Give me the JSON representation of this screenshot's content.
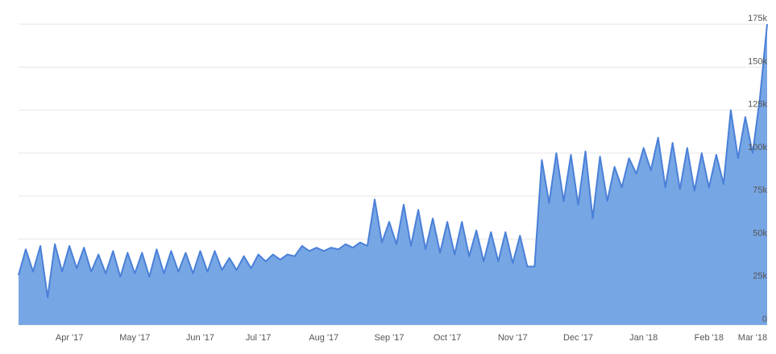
{
  "chart_data": {
    "type": "area",
    "categories": [
      null,
      null,
      null,
      null,
      null,
      null,
      null,
      "Apr '17",
      null,
      null,
      null,
      null,
      null,
      null,
      null,
      null,
      "May '17",
      null,
      null,
      null,
      null,
      null,
      null,
      null,
      null,
      "Jun '17",
      null,
      null,
      null,
      null,
      null,
      null,
      null,
      "Jul '17",
      null,
      null,
      null,
      null,
      null,
      null,
      null,
      null,
      "Aug '17",
      null,
      null,
      null,
      null,
      null,
      null,
      null,
      null,
      "Sep '17",
      null,
      null,
      null,
      null,
      null,
      null,
      null,
      "Oct '17",
      null,
      null,
      null,
      null,
      null,
      null,
      null,
      null,
      "Nov '17",
      null,
      null,
      null,
      null,
      null,
      null,
      null,
      null,
      "Dec '17",
      null,
      null,
      null,
      null,
      null,
      null,
      null,
      null,
      "Jan '18",
      null,
      null,
      null,
      null,
      null,
      null,
      null,
      null,
      "Feb '18",
      null,
      null,
      null,
      null,
      null,
      "Mar '18",
      null,
      null
    ],
    "values": [
      29000,
      44000,
      31000,
      46000,
      16000,
      47000,
      31000,
      46000,
      33000,
      45000,
      31000,
      41000,
      30000,
      43000,
      28000,
      42000,
      30000,
      42000,
      28000,
      44000,
      30000,
      43000,
      31000,
      42000,
      30000,
      43000,
      31000,
      43000,
      32000,
      39000,
      32000,
      40000,
      33000,
      41000,
      37000,
      41000,
      38000,
      41000,
      40000,
      46000,
      43000,
      45000,
      43000,
      45000,
      44000,
      47000,
      45000,
      48000,
      46000,
      73000,
      48000,
      60000,
      47000,
      70000,
      46000,
      67000,
      44000,
      62000,
      42000,
      60000,
      41000,
      60000,
      40000,
      55000,
      37000,
      54000,
      37000,
      54000,
      36000,
      52000,
      34000,
      34000,
      96000,
      71000,
      100000,
      72000,
      99000,
      70000,
      101000,
      62000,
      98000,
      72000,
      92000,
      80000,
      97000,
      88000,
      103000,
      90000,
      109000,
      80000,
      106000,
      79000,
      103000,
      78000,
      100000,
      80000,
      99000,
      82000,
      125000,
      97000,
      121000,
      100000,
      132000,
      175000
    ],
    "color": "#4a80d8",
    "fill": "#77a6e4",
    "ylim": [
      0,
      175000
    ],
    "yticks": [
      0,
      {
        "value": 25000,
        "label": "25k"
      },
      {
        "value": 50000,
        "label": "50k"
      },
      {
        "value": 75000,
        "label": "75k"
      },
      {
        "value": 100000,
        "label": "100k"
      },
      {
        "value": 125000,
        "label": "125k"
      },
      {
        "value": 150000,
        "label": "150k"
      },
      {
        "value": 175000,
        "label": "175k"
      }
    ],
    "grid": true
  }
}
